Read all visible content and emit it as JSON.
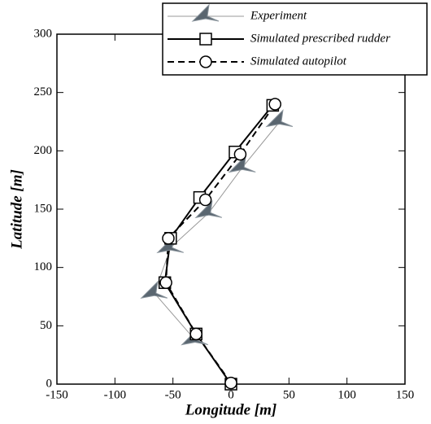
{
  "chart_data": {
    "type": "line",
    "x_label": "Longitude [m]",
    "y_label": "Latitude [m]",
    "xlim": [
      -150,
      150
    ],
    "ylim": [
      0,
      300
    ],
    "xticks": [
      -150,
      -100,
      -50,
      0,
      50,
      100,
      150
    ],
    "yticks": [
      0,
      50,
      100,
      150,
      200,
      250,
      300
    ],
    "legend": "upper right",
    "series": [
      {
        "name": "Experiment",
        "color": "#999999",
        "marker": "ship",
        "dash": "solid",
        "x": [
          -31,
          -66,
          -52,
          -19,
          10,
          42
        ],
        "values": [
          38,
          78,
          117,
          147,
          186,
          225
        ]
      },
      {
        "name": "Simulated prescribed rudder",
        "color": "#000000",
        "marker": "square",
        "dash": "solid",
        "x": [
          0,
          -30,
          -57,
          -52,
          -27,
          3.5,
          36
        ],
        "values": [
          0,
          43,
          87,
          125,
          160,
          199,
          239
        ]
      },
      {
        "name": "Simulated autopilot",
        "color": "#000000",
        "marker": "circle",
        "dash": "dashed",
        "x": [
          0,
          -30,
          -56,
          -54,
          -22,
          8,
          38
        ],
        "values": [
          1,
          43,
          87,
          125,
          158,
          197,
          240
        ]
      }
    ]
  }
}
